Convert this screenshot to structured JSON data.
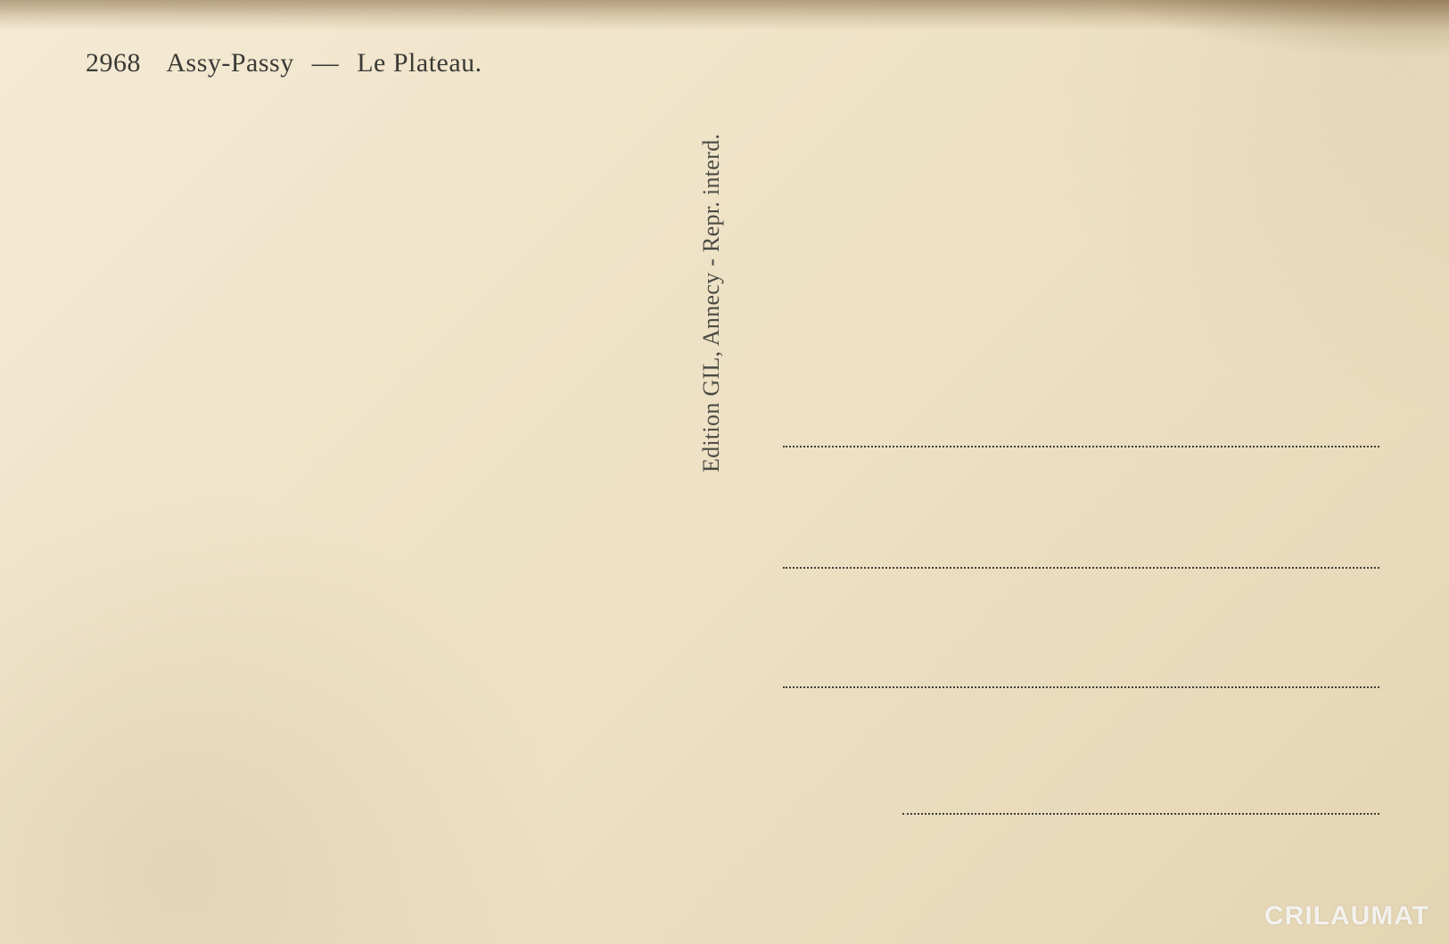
{
  "card": {
    "number": "2968",
    "place": "Assy-Passy",
    "separator": "—",
    "subject": "Le Plateau."
  },
  "publisher_line": "Edition GIL, Annecy - Repr. interd.",
  "watermark": "CRILAUMAT",
  "colors": {
    "paper_light": "#f4ead4",
    "paper_dark": "#e4d5b3",
    "ink": "#3a3a36",
    "edge_brown": "#80623e"
  },
  "address_lines": 4
}
